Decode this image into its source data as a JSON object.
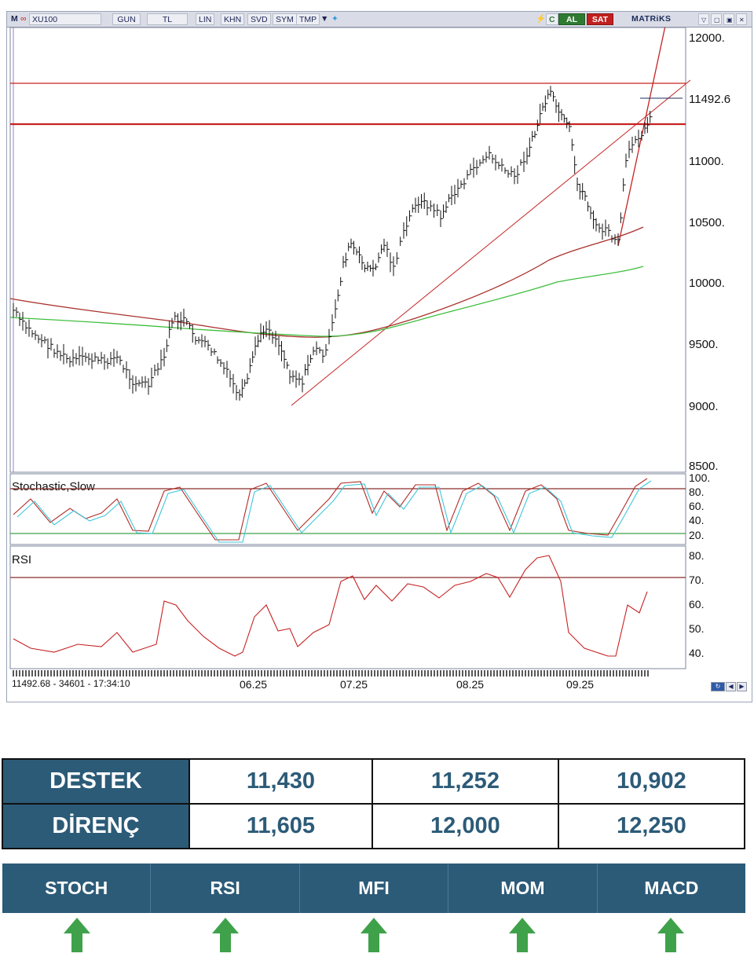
{
  "toolbar": {
    "menu": "M",
    "symbol": "XU100",
    "period": "GUN",
    "currency": "TL",
    "buttons": [
      "LIN",
      "KHN",
      "SVD",
      "SYM",
      "TMP"
    ],
    "misc": "C",
    "buy": "AL",
    "sell": "SAT",
    "brand": "MATRiKS"
  },
  "chart": {
    "price_axis": [
      "12000.",
      "11492.6",
      "11000.",
      "10500.",
      "10000.",
      "9500.",
      "9000.",
      "8500."
    ],
    "stochastic_title": "Stochastic,Slow",
    "stochastic_axis": [
      "100.",
      "80.",
      "60.",
      "40.",
      "20."
    ],
    "rsi_title": "RSI",
    "rsi_axis": [
      "80.",
      "70.",
      "60.",
      "50.",
      "40."
    ],
    "status_line": "11492.68 - 34601 - 17:34:10",
    "months": [
      "06.25",
      "07.25",
      "08.25",
      "09.25"
    ]
  },
  "levels": {
    "support": {
      "label": "DESTEK",
      "values": [
        "11,430",
        "11,252",
        "10,902"
      ]
    },
    "resistance": {
      "label": "DİRENÇ",
      "values": [
        "11,605",
        "12,000",
        "12,250"
      ]
    }
  },
  "indicators": [
    {
      "label": "STOCH",
      "signal": "up"
    },
    {
      "label": "RSI",
      "signal": "up"
    },
    {
      "label": "MFI",
      "signal": "up"
    },
    {
      "label": "MOM",
      "signal": "up"
    },
    {
      "label": "MACD",
      "signal": "up"
    }
  ],
  "colors": {
    "header_blue": "#2c5b78",
    "arrow_green": "#3fa24a",
    "resistance_line": "#c62222",
    "ma_red": "#a8312c",
    "ma_green": "#3fbf3f",
    "stoch_cyan": "#3fc6d9"
  }
}
